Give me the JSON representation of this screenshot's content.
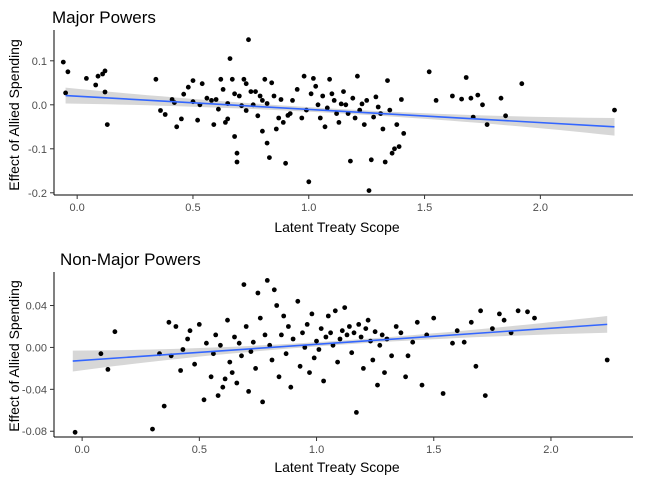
{
  "figure": {
    "background": "#ffffff",
    "point_color": "#000000",
    "line_color": "#3366ff",
    "band_color": "#d3d3d3"
  },
  "chart_data": [
    {
      "type": "scatter",
      "title": "Major Powers",
      "xlabel": "Latent Treaty Scope",
      "ylabel": "Effect of Allied Spending",
      "xlim": [
        -0.1,
        2.4
      ],
      "ylim": [
        -0.205,
        0.17
      ],
      "xticks": [
        0.0,
        0.5,
        1.0,
        1.5,
        2.0
      ],
      "xtick_labels": [
        "0.0",
        "0.5",
        "1.0",
        "1.5",
        "2.0"
      ],
      "yticks": [
        0.1,
        0.0,
        -0.1,
        -0.2
      ],
      "ytick_labels": [
        "0.1",
        "0.0",
        "-0.1",
        "-0.2"
      ],
      "grid": false,
      "fit": {
        "x": [
          -0.05,
          2.32
        ],
        "y": [
          0.021,
          -0.05
        ],
        "ci_halfwidth_ends": [
          0.018,
          0.02
        ],
        "ci_halfwidth_mid": 0.005
      },
      "points": [
        [
          -0.06,
          0.097
        ],
        [
          -0.05,
          0.027
        ],
        [
          -0.04,
          0.075
        ],
        [
          0.04,
          0.06
        ],
        [
          0.08,
          0.045
        ],
        [
          0.09,
          0.065
        ],
        [
          0.11,
          0.07
        ],
        [
          0.12,
          0.029
        ],
        [
          0.12,
          0.077
        ],
        [
          0.13,
          -0.045
        ],
        [
          0.34,
          0.058
        ],
        [
          0.36,
          -0.013
        ],
        [
          0.38,
          -0.022
        ],
        [
          0.41,
          0.012
        ],
        [
          0.42,
          0.005
        ],
        [
          0.43,
          -0.05
        ],
        [
          0.45,
          -0.032
        ],
        [
          0.46,
          0.024
        ],
        [
          0.48,
          0.04
        ],
        [
          0.5,
          0.055
        ],
        [
          0.5,
          0.007
        ],
        [
          0.52,
          -0.035
        ],
        [
          0.53,
          0.0
        ],
        [
          0.54,
          0.048
        ],
        [
          0.56,
          0.015
        ],
        [
          0.58,
          0.01
        ],
        [
          0.59,
          -0.045
        ],
        [
          0.6,
          0.012
        ],
        [
          0.61,
          -0.01
        ],
        [
          0.62,
          0.058
        ],
        [
          0.63,
          0.035
        ],
        [
          0.64,
          -0.04
        ],
        [
          0.65,
          0.003
        ],
        [
          0.65,
          -0.032
        ],
        [
          0.66,
          0.105
        ],
        [
          0.67,
          0.058
        ],
        [
          0.68,
          -0.072
        ],
        [
          0.68,
          0.025
        ],
        [
          0.69,
          -0.11
        ],
        [
          0.69,
          -0.13
        ],
        [
          0.7,
          0.02
        ],
        [
          0.71,
          -0.002
        ],
        [
          0.72,
          0.058
        ],
        [
          0.73,
          0.048
        ],
        [
          0.73,
          -0.013
        ],
        [
          0.74,
          0.148
        ],
        [
          0.75,
          0.03
        ],
        [
          0.76,
          0.0
        ],
        [
          0.77,
          0.03
        ],
        [
          0.78,
          -0.025
        ],
        [
          0.79,
          0.02
        ],
        [
          0.8,
          0.01
        ],
        [
          0.8,
          -0.06
        ],
        [
          0.81,
          0.058
        ],
        [
          0.82,
          0.003
        ],
        [
          0.82,
          -0.087
        ],
        [
          0.83,
          -0.12
        ],
        [
          0.84,
          0.05
        ],
        [
          0.85,
          0.02
        ],
        [
          0.86,
          -0.055
        ],
        [
          0.87,
          -0.03
        ],
        [
          0.88,
          0.012
        ],
        [
          0.89,
          -0.04
        ],
        [
          0.9,
          -0.133
        ],
        [
          0.91,
          -0.024
        ],
        [
          0.92,
          -0.02
        ],
        [
          0.93,
          0.01
        ],
        [
          0.95,
          0.035
        ],
        [
          0.97,
          -0.03
        ],
        [
          0.98,
          0.065
        ],
        [
          0.99,
          -0.012
        ],
        [
          1.0,
          -0.175
        ],
        [
          1.01,
          0.025
        ],
        [
          1.02,
          0.06
        ],
        [
          1.03,
          0.042
        ],
        [
          1.04,
          0.0
        ],
        [
          1.05,
          -0.03
        ],
        [
          1.06,
          0.02
        ],
        [
          1.07,
          -0.05
        ],
        [
          1.08,
          -0.007
        ],
        [
          1.09,
          0.058
        ],
        [
          1.1,
          0.025
        ],
        [
          1.11,
          0.01
        ],
        [
          1.12,
          -0.02
        ],
        [
          1.13,
          -0.04
        ],
        [
          1.14,
          0.002
        ],
        [
          1.15,
          0.03
        ],
        [
          1.16,
          0.0
        ],
        [
          1.17,
          -0.02
        ],
        [
          1.18,
          -0.128
        ],
        [
          1.19,
          0.015
        ],
        [
          1.2,
          -0.03
        ],
        [
          1.21,
          0.065
        ],
        [
          1.22,
          -0.012
        ],
        [
          1.23,
          0.002
        ],
        [
          1.24,
          -0.045
        ],
        [
          1.25,
          0.01
        ],
        [
          1.26,
          -0.195
        ],
        [
          1.27,
          -0.125
        ],
        [
          1.28,
          -0.028
        ],
        [
          1.29,
          0.018
        ],
        [
          1.3,
          -0.005
        ],
        [
          1.31,
          -0.02
        ],
        [
          1.32,
          -0.055
        ],
        [
          1.33,
          -0.13
        ],
        [
          1.34,
          0.055
        ],
        [
          1.35,
          -0.012
        ],
        [
          1.36,
          -0.11
        ],
        [
          1.37,
          -0.1
        ],
        [
          1.38,
          -0.045
        ],
        [
          1.39,
          -0.095
        ],
        [
          1.4,
          0.012
        ],
        [
          1.41,
          -0.065
        ],
        [
          1.52,
          0.075
        ],
        [
          1.55,
          0.01
        ],
        [
          1.62,
          0.02
        ],
        [
          1.66,
          0.013
        ],
        [
          1.68,
          0.062
        ],
        [
          1.7,
          0.015
        ],
        [
          1.71,
          -0.028
        ],
        [
          1.73,
          0.022
        ],
        [
          1.75,
          0.0
        ],
        [
          1.77,
          -0.045
        ],
        [
          1.83,
          0.015
        ],
        [
          1.85,
          -0.025
        ],
        [
          1.92,
          0.048
        ],
        [
          2.32,
          -0.012
        ]
      ]
    },
    {
      "type": "scatter",
      "title": "Non-Major Powers",
      "xlabel": "Latent Treaty Scope",
      "ylabel": "Effect of Allied Spending",
      "xlim": [
        -0.12,
        2.35
      ],
      "ylim": [
        -0.0855,
        0.072
      ],
      "xticks": [
        0.0,
        0.5,
        1.0,
        1.5,
        2.0
      ],
      "xtick_labels": [
        "0.0",
        "0.5",
        "1.0",
        "1.5",
        "2.0"
      ],
      "yticks": [
        0.04,
        0.0,
        -0.04,
        -0.08
      ],
      "ytick_labels": [
        "0.04",
        "0.00",
        "-0.04",
        "-0.08"
      ],
      "grid": false,
      "fit": {
        "x": [
          -0.04,
          2.24
        ],
        "y": [
          -0.013,
          0.022
        ],
        "ci_halfwidth_ends": [
          0.01,
          0.008
        ],
        "ci_halfwidth_mid": 0.002
      },
      "points": [
        [
          -0.03,
          -0.081
        ],
        [
          0.08,
          -0.006
        ],
        [
          0.11,
          -0.021
        ],
        [
          0.14,
          0.015
        ],
        [
          0.3,
          -0.078
        ],
        [
          0.33,
          -0.006
        ],
        [
          0.35,
          -0.056
        ],
        [
          0.37,
          0.024
        ],
        [
          0.38,
          -0.008
        ],
        [
          0.4,
          0.02
        ],
        [
          0.42,
          -0.022
        ],
        [
          0.43,
          -0.002
        ],
        [
          0.45,
          0.008
        ],
        [
          0.46,
          0.016
        ],
        [
          0.48,
          -0.016
        ],
        [
          0.5,
          0.022
        ],
        [
          0.52,
          -0.05
        ],
        [
          0.53,
          0.004
        ],
        [
          0.55,
          -0.028
        ],
        [
          0.56,
          -0.006
        ],
        [
          0.57,
          0.012
        ],
        [
          0.58,
          -0.046
        ],
        [
          0.59,
          0.002
        ],
        [
          0.6,
          -0.038
        ],
        [
          0.61,
          -0.03
        ],
        [
          0.62,
          0.026
        ],
        [
          0.63,
          -0.014
        ],
        [
          0.64,
          -0.024
        ],
        [
          0.65,
          0.01
        ],
        [
          0.66,
          -0.034
        ],
        [
          0.67,
          0.004
        ],
        [
          0.68,
          -0.008
        ],
        [
          0.69,
          0.06
        ],
        [
          0.7,
          0.02
        ],
        [
          0.71,
          -0.042
        ],
        [
          0.72,
          -0.004
        ],
        [
          0.73,
          0.005
        ],
        [
          0.74,
          -0.02
        ],
        [
          0.75,
          0.052
        ],
        [
          0.76,
          0.028
        ],
        [
          0.77,
          -0.052
        ],
        [
          0.78,
          0.012
        ],
        [
          0.79,
          0.064
        ],
        [
          0.8,
          0.002
        ],
        [
          0.81,
          -0.012
        ],
        [
          0.82,
          0.055
        ],
        [
          0.83,
          0.04
        ],
        [
          0.84,
          -0.028
        ],
        [
          0.85,
          0.012
        ],
        [
          0.86,
          0.03
        ],
        [
          0.87,
          -0.006
        ],
        [
          0.88,
          0.02
        ],
        [
          0.89,
          -0.038
        ],
        [
          0.9,
          0.008
        ],
        [
          0.92,
          0.044
        ],
        [
          0.93,
          -0.018
        ],
        [
          0.94,
          0.014
        ],
        [
          0.95,
          0.0
        ],
        [
          0.96,
          0.022
        ],
        [
          0.97,
          -0.024
        ],
        [
          0.98,
          0.032
        ],
        [
          0.99,
          -0.01
        ],
        [
          1.0,
          0.006
        ],
        [
          1.01,
          -0.002
        ],
        [
          1.02,
          0.018
        ],
        [
          1.03,
          -0.032
        ],
        [
          1.04,
          0.01
        ],
        [
          1.05,
          0.03
        ],
        [
          1.06,
          0.014
        ],
        [
          1.07,
          0.002
        ],
        [
          1.08,
          0.035
        ],
        [
          1.09,
          -0.014
        ],
        [
          1.1,
          0.008
        ],
        [
          1.11,
          0.016
        ],
        [
          1.12,
          0.038
        ],
        [
          1.13,
          0.012
        ],
        [
          1.14,
          0.02
        ],
        [
          1.15,
          -0.005
        ],
        [
          1.16,
          0.014
        ],
        [
          1.17,
          -0.062
        ],
        [
          1.18,
          0.022
        ],
        [
          1.19,
          0.01
        ],
        [
          1.2,
          -0.02
        ],
        [
          1.21,
          0.018
        ],
        [
          1.22,
          0.026
        ],
        [
          1.23,
          0.006
        ],
        [
          1.24,
          -0.012
        ],
        [
          1.25,
          0.015
        ],
        [
          1.26,
          -0.036
        ],
        [
          1.27,
          0.002
        ],
        [
          1.28,
          0.012
        ],
        [
          1.29,
          -0.024
        ],
        [
          1.3,
          0.008
        ],
        [
          1.32,
          -0.008
        ],
        [
          1.34,
          0.02
        ],
        [
          1.36,
          0.014
        ],
        [
          1.38,
          -0.028
        ],
        [
          1.39,
          -0.008
        ],
        [
          1.41,
          0.005
        ],
        [
          1.43,
          0.024
        ],
        [
          1.45,
          -0.036
        ],
        [
          1.47,
          0.012
        ],
        [
          1.5,
          0.028
        ],
        [
          1.54,
          -0.044
        ],
        [
          1.58,
          0.004
        ],
        [
          1.6,
          0.016
        ],
        [
          1.63,
          0.005
        ],
        [
          1.66,
          0.024
        ],
        [
          1.68,
          -0.018
        ],
        [
          1.7,
          0.035
        ],
        [
          1.72,
          -0.046
        ],
        [
          1.75,
          0.018
        ],
        [
          1.78,
          0.032
        ],
        [
          1.8,
          0.026
        ],
        [
          1.83,
          0.014
        ],
        [
          1.86,
          0.035
        ],
        [
          1.9,
          0.034
        ],
        [
          1.93,
          0.028
        ],
        [
          2.24,
          -0.012
        ]
      ]
    }
  ]
}
